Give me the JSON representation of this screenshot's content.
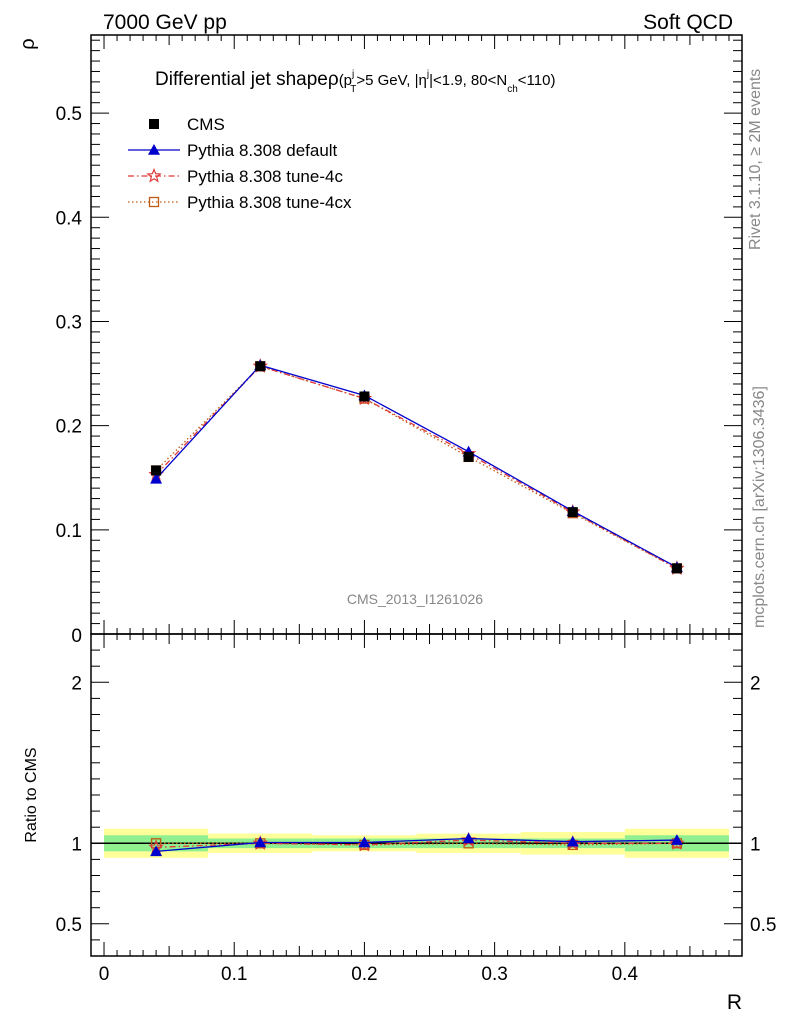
{
  "header": {
    "left": "7000 GeV pp",
    "right": "Soft QCD"
  },
  "side_labels": {
    "rivet": "Rivet 3.1.10, ≥ 2M events",
    "mcplots": "mcplots.cern.ch [arXiv:1306.3436]"
  },
  "chart_data": {
    "type": "line",
    "title": "Differential jet shapeρ",
    "title_cuts": {
      "open": "(p",
      "pt_sup": "j",
      "pt_sub": "T",
      "pt_cut": ">5 GeV, |η",
      "eta_sup": "j",
      "eta_cut": "|<1.9, 80<N",
      "nch_sub": "ch",
      "close": "<110)"
    },
    "analysis_label": "CMS_2013_I1261026",
    "ylabel": "ρ",
    "xlabel": "R",
    "ratio_ylabel": "Ratio to CMS",
    "x": [
      0.04,
      0.12,
      0.2,
      0.28,
      0.36,
      0.44
    ],
    "x_bin_edges": [
      0.0,
      0.08,
      0.16,
      0.24,
      0.32,
      0.4,
      0.48
    ],
    "xlim": [
      -0.01,
      0.49
    ],
    "ylim": [
      0,
      0.575
    ],
    "ratio_ylim": [
      0.3,
      2.3
    ],
    "x_ticks": [
      "0",
      "0.1",
      "0.2",
      "0.3",
      "0.4"
    ],
    "x_tick_values": [
      0,
      0.1,
      0.2,
      0.3,
      0.4
    ],
    "y_ticks": [
      "0.1",
      "0.2",
      "0.3",
      "0.4",
      "0.5"
    ],
    "y_tick_values": [
      0.1,
      0.2,
      0.3,
      0.4,
      0.5
    ],
    "y_zero_label": "0",
    "ratio_y_ticks": [
      "0.5",
      "1",
      "2"
    ],
    "ratio_y_tick_values": [
      0.5,
      1,
      2
    ],
    "legend_position": "top-left",
    "series": [
      {
        "name": "CMS",
        "values": [
          0.157,
          0.257,
          0.228,
          0.17,
          0.117,
          0.063
        ],
        "color": "#000000",
        "marker": "square-filled",
        "line": "none"
      },
      {
        "name": "Pythia 8.308 default",
        "values": [
          0.149,
          0.258,
          0.229,
          0.175,
          0.118,
          0.064
        ],
        "color": "#0000cc",
        "marker": "triangle",
        "line": "solid"
      },
      {
        "name": "Pythia 8.308 tune-4c",
        "values": [
          0.153,
          0.257,
          0.226,
          0.173,
          0.117,
          0.063
        ],
        "color": "#e03a3a",
        "marker": "star",
        "line": "dashdot"
      },
      {
        "name": "Pythia 8.308 tune-4cx",
        "values": [
          0.157,
          0.257,
          0.226,
          0.17,
          0.116,
          0.063
        ],
        "color": "#c05a10",
        "marker": "square-open",
        "line": "dotted"
      }
    ],
    "ratio_series": [
      {
        "name": "Pythia 8.308 default",
        "values": [
          0.95,
          1.005,
          1.005,
          1.03,
          1.01,
          1.02
        ]
      },
      {
        "name": "Pythia 8.308 tune-4c",
        "values": [
          0.975,
          1.0,
          0.99,
          1.02,
          1.0,
          1.0
        ]
      },
      {
        "name": "Pythia 8.308 tune-4cx",
        "values": [
          1.0,
          1.0,
          0.99,
          1.0,
          0.99,
          1.0
        ]
      }
    ],
    "ratio_band_inner": [
      0.05,
      0.03,
      0.03,
      0.03,
      0.03,
      0.05
    ],
    "ratio_band_outer": [
      0.09,
      0.06,
      0.05,
      0.06,
      0.07,
      0.09
    ],
    "band_colors": {
      "inner": "#90f090",
      "outer": "#ffff99"
    }
  }
}
